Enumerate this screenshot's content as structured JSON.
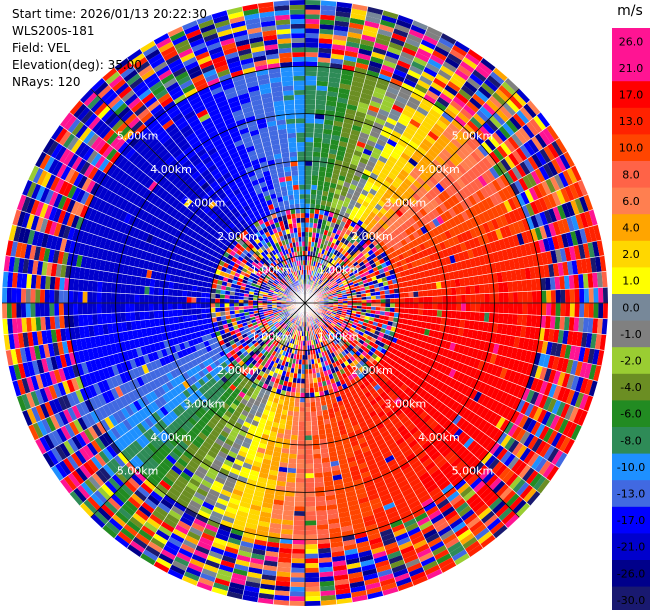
{
  "header": {
    "start_time": "Start time: 2026/01/13 20:22:30",
    "instrument": "WLS200s-181",
    "field": "Field: VEL",
    "elevation": "Elevation(deg): 35.00",
    "nrays": "NRays: 120"
  },
  "chart_data": {
    "type": "ppi_polar_heatmap",
    "field": "VEL",
    "n_rays": 120,
    "elevation_deg": 35.0,
    "range_unit": "km",
    "range_rings_km": [
      1,
      2,
      3,
      4,
      5
    ],
    "range_ring_labels": [
      "1.00km",
      "2.00km",
      "3.00km",
      "4.00km",
      "5.00km"
    ],
    "max_range_km": 6.4,
    "velocity_pattern": {
      "description_of_field": "dipole radial wind pattern: receding (positive) to east / south-east, approaching (negative) to north-west / west, noise beyond ~1 km near center and beyond ~5 km",
      "approx_max_inbound_ms": -17,
      "approx_max_outbound_ms": 21
    },
    "colorbar": {
      "unit": "m/s",
      "labels": [
        "26.0",
        "21.0",
        "17.0",
        "13.0",
        "10.0",
        "8.0",
        "6.0",
        "4.0",
        "2.0",
        "1.0",
        "0.0",
        "-1.0",
        "-2.0",
        "-4.0",
        "-6.0",
        "-8.0",
        "-10.0",
        "-13.0",
        "-17.0",
        "-21.0",
        "-26.0",
        "-30.0"
      ],
      "colors": [
        "#ff1493",
        "#ff1493",
        "#ff0000",
        "#ff2200",
        "#ff4500",
        "#ff6347",
        "#ff7f50",
        "#ffa500",
        "#ffd700",
        "#ffff00",
        "#778899",
        "#808080",
        "#9acd32",
        "#6b8e23",
        "#228b22",
        "#2e8b57",
        "#1e90ff",
        "#4169e1",
        "#0000ff",
        "#0000cd",
        "#00008b",
        "#191970"
      ]
    }
  }
}
